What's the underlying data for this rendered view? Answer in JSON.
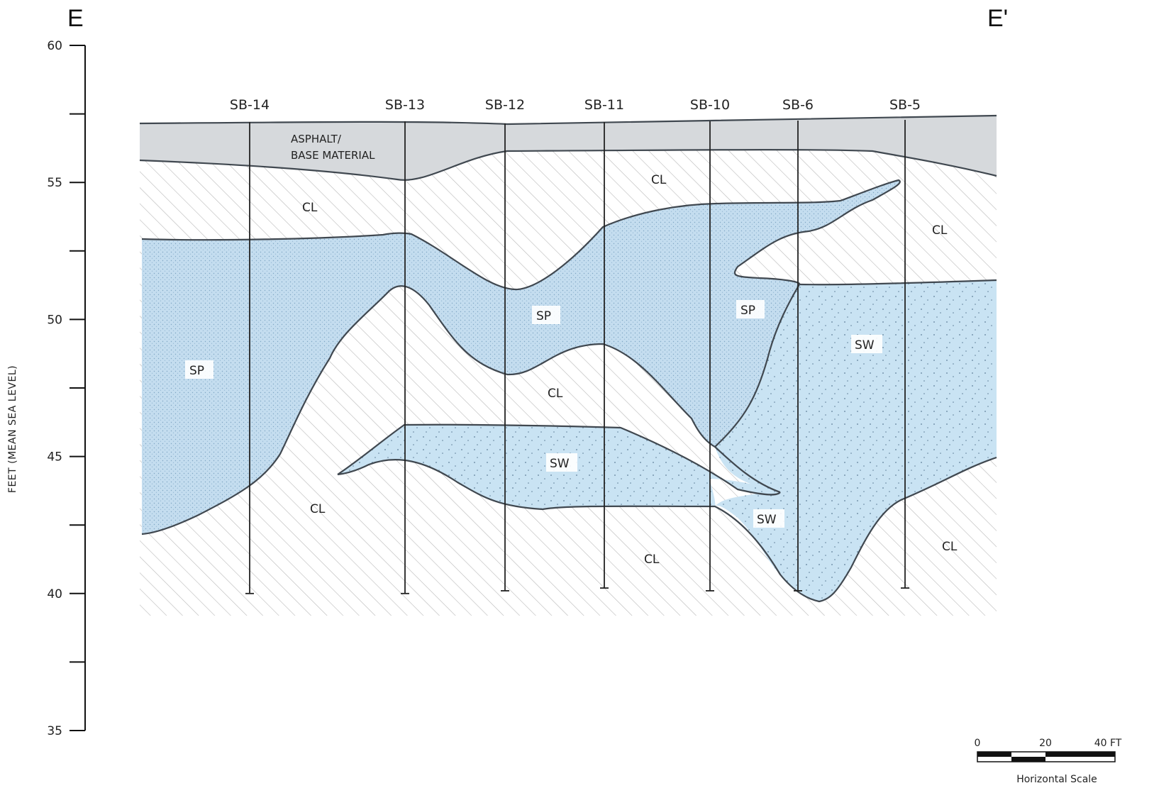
{
  "section": {
    "start_label": "E",
    "end_label": "E'"
  },
  "axis": {
    "title": "FEET (MEAN SEA LEVEL)",
    "ticks": [
      {
        "value": 60,
        "label": "60"
      },
      {
        "value": 55,
        "label": "55"
      },
      {
        "value": 50,
        "label": "50"
      },
      {
        "value": 45,
        "label": "45"
      },
      {
        "value": 40,
        "label": "40"
      },
      {
        "value": 35,
        "label": "35"
      }
    ],
    "min": 35,
    "max": 60
  },
  "borings": [
    {
      "name": "SB-14",
      "bottom_elev": 40.0
    },
    {
      "name": "SB-13",
      "bottom_elev": 40.0
    },
    {
      "name": "SB-12",
      "bottom_elev": 40.1
    },
    {
      "name": "SB-11",
      "bottom_elev": 40.2
    },
    {
      "name": "SB-10",
      "bottom_elev": 40.1
    },
    {
      "name": "SB-6",
      "bottom_elev": 40.1
    },
    {
      "name": "SB-5",
      "bottom_elev": 40.2
    }
  ],
  "units": {
    "asphalt_line1": "ASPHALT/",
    "asphalt_line2": "BASE MATERIAL",
    "cl": "CL",
    "sp": "SP",
    "sw": "SW"
  },
  "scale_bar": {
    "labels": [
      "0",
      "20",
      "40 FT"
    ],
    "title": "Horizontal Scale"
  },
  "colors": {
    "asphalt": "#d6d9dc",
    "sand": "#c7e1f2",
    "hatch": "#b5b5b5",
    "contact": "#404850"
  }
}
